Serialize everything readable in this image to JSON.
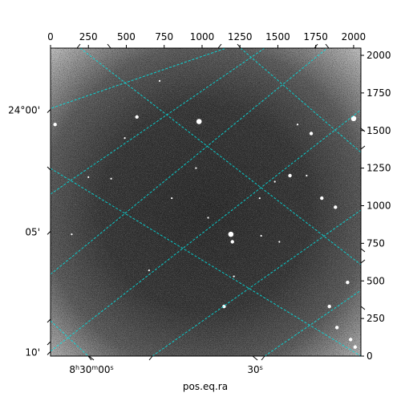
{
  "chart_data": {
    "type": "image",
    "colormap": "gray",
    "grid": true,
    "grid_color": "#00e5e5",
    "xlabel": "pos.eq.ra",
    "ylabel": "",
    "pixel_axes": {
      "x_range": [
        0,
        2048
      ],
      "y_range": [
        0,
        2048
      ],
      "x_ticks": [
        0,
        250,
        500,
        750,
        1000,
        1250,
        1500,
        1750,
        2000
      ],
      "y_ticks": [
        0,
        250,
        500,
        750,
        1000,
        1250,
        1500,
        1750,
        2000
      ]
    },
    "world_axes": {
      "ra_ticks": [
        {
          "label": "8h30m00s",
          "x": 270
        },
        {
          "label": "30s",
          "x": 1350
        }
      ],
      "dec_ticks": [
        {
          "label": "24°00'",
          "y": 1640
        },
        {
          "label": "05'",
          "y": 830
        },
        {
          "label": "10'",
          "y": 30
        }
      ]
    },
    "stars": [
      {
        "x": 980,
        "y": 1560,
        "r": 3
      },
      {
        "x": 1190,
        "y": 810,
        "r": 3
      },
      {
        "x": 2000,
        "y": 1580,
        "r": 3
      },
      {
        "x": 1790,
        "y": 1050,
        "r": 2
      },
      {
        "x": 1840,
        "y": 330,
        "r": 2
      },
      {
        "x": 1145,
        "y": 330,
        "r": 2
      },
      {
        "x": 1890,
        "y": 190,
        "r": 2
      },
      {
        "x": 1200,
        "y": 760,
        "r": 2
      },
      {
        "x": 1720,
        "y": 1480,
        "r": 2
      },
      {
        "x": 30,
        "y": 1540,
        "r": 2
      },
      {
        "x": 570,
        "y": 1590,
        "r": 2
      },
      {
        "x": 1880,
        "y": 990,
        "r": 2
      },
      {
        "x": 1580,
        "y": 1200,
        "r": 2
      },
      {
        "x": 1980,
        "y": 110,
        "r": 2
      },
      {
        "x": 1960,
        "y": 490,
        "r": 2
      },
      {
        "x": 2010,
        "y": 60,
        "r": 2
      },
      {
        "x": 960,
        "y": 1250,
        "r": 1
      },
      {
        "x": 250,
        "y": 1190,
        "r": 1
      },
      {
        "x": 140,
        "y": 810,
        "r": 1
      },
      {
        "x": 800,
        "y": 1050,
        "r": 1
      },
      {
        "x": 1390,
        "y": 800,
        "r": 1
      },
      {
        "x": 1210,
        "y": 530,
        "r": 1
      },
      {
        "x": 1040,
        "y": 920,
        "r": 1
      },
      {
        "x": 720,
        "y": 1830,
        "r": 1
      },
      {
        "x": 1630,
        "y": 1540,
        "r": 1
      },
      {
        "x": 490,
        "y": 1450,
        "r": 1
      },
      {
        "x": 1380,
        "y": 1050,
        "r": 1
      },
      {
        "x": 1510,
        "y": 760,
        "r": 1
      },
      {
        "x": 650,
        "y": 570,
        "r": 1
      },
      {
        "x": 1690,
        "y": 1200,
        "r": 1
      },
      {
        "x": 400,
        "y": 1180,
        "r": 1
      },
      {
        "x": 1480,
        "y": 1160,
        "r": 1
      }
    ]
  }
}
